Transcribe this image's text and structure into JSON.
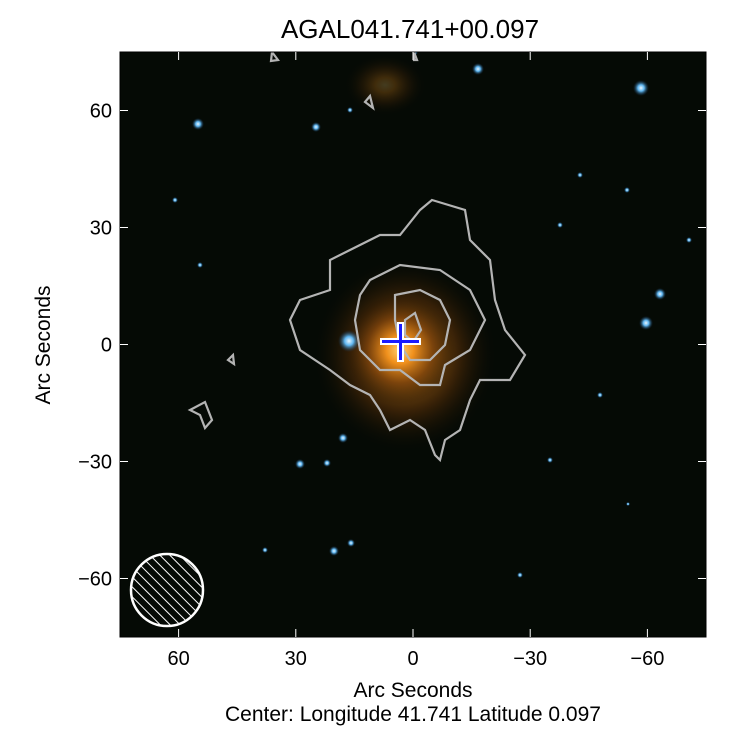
{
  "chart_data": {
    "type": "heatmap",
    "title": "AGAL041.741+00.097",
    "xlabel": "Arc Seconds",
    "ylabel": "Arc Seconds",
    "caption": "Center:  Longitude 41.741 Latitude 0.097",
    "xlim": [
      75,
      -75
    ],
    "ylim": [
      -75,
      75
    ],
    "x_ticks": [
      60,
      30,
      0,
      -30,
      -60
    ],
    "y_ticks": [
      60,
      30,
      0,
      -30,
      -60
    ],
    "x_tick_labels": [
      "60",
      "30",
      "0",
      "−30",
      "−60"
    ],
    "y_tick_labels": [
      "60",
      "30",
      "0",
      "−30",
      "−60"
    ],
    "grid": false,
    "colors": {
      "background": "#050a05",
      "emission": "#f0901c",
      "stars": "#5fb6f0",
      "contours": "#b4b4b4",
      "marker": "#1a1aff"
    },
    "markers": [
      {
        "type": "cross",
        "x": 2.5,
        "y": 1
      }
    ],
    "beam": {
      "x": 62,
      "y": -62,
      "diameter_arcsec": 19
    }
  }
}
